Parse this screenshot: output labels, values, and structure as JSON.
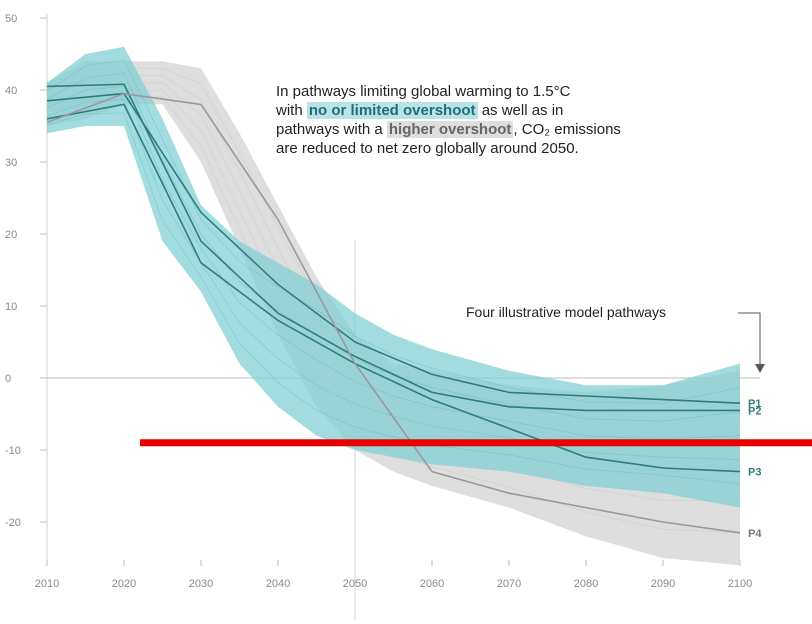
{
  "annotation": {
    "line1": "In pathways limiting global warming to 1.5°C",
    "line2_pre": "with ",
    "line2_highlight": "no or limited overshoot",
    "line2_post": " as well as in",
    "line3_pre": "pathways with a ",
    "line3_highlight": "higher overshoot",
    "line3_post": ", CO₂ emissions",
    "line4": "are reduced to net zero globally around 2050."
  },
  "pathways_note": "Four illustrative model pathways",
  "colors": {
    "teal_band": "#7fcfd3",
    "teal_line": "#2f7d7d",
    "grey_band": "#d3d3d3",
    "grey_line": "#9a9a9a",
    "red_marker": "#e60000"
  },
  "chart_data": {
    "type": "line",
    "x_ticks": [
      2010,
      2020,
      2030,
      2040,
      2050,
      2060,
      2070,
      2080,
      2090,
      2100
    ],
    "y_ticks": [
      50,
      40,
      30,
      20,
      10,
      0,
      -10,
      -20
    ],
    "xlim": [
      2010,
      2100
    ],
    "ylim": [
      -25,
      50
    ],
    "grid": false,
    "bands": [
      {
        "name": "higher overshoot range",
        "color": "#d9d9d9",
        "x": [
          2010,
          2015,
          2020,
          2025,
          2030,
          2035,
          2040,
          2045,
          2050,
          2055,
          2060,
          2070,
          2080,
          2090,
          2100
        ],
        "upper": [
          41,
          44,
          44,
          44,
          43,
          34,
          24,
          14,
          6,
          2,
          1,
          -1,
          -2,
          -1,
          1
        ],
        "lower": [
          35,
          36,
          38,
          38,
          30,
          18,
          6,
          -4,
          -10,
          -13,
          -15,
          -18,
          -22,
          -25,
          -26
        ]
      },
      {
        "name": "no or limited overshoot range",
        "color": "#7fcfd3",
        "x": [
          2010,
          2015,
          2020,
          2025,
          2030,
          2035,
          2040,
          2045,
          2050,
          2055,
          2060,
          2070,
          2080,
          2090,
          2100
        ],
        "upper": [
          41,
          45,
          46,
          36,
          24,
          19,
          16,
          13,
          9,
          6,
          4,
          1,
          -1,
          -1,
          2
        ],
        "lower": [
          34,
          35,
          35,
          19,
          12,
          2,
          -4,
          -8,
          -10,
          -11,
          -12,
          -13,
          -15,
          -16,
          -18
        ]
      }
    ],
    "series": [
      {
        "name": "P1",
        "values": [
          [
            2010,
            38.5
          ],
          [
            2020,
            39.5
          ],
          [
            2030,
            23
          ],
          [
            2040,
            13
          ],
          [
            2050,
            5
          ],
          [
            2060,
            0.5
          ],
          [
            2070,
            -2
          ],
          [
            2080,
            -2.5
          ],
          [
            2090,
            -3
          ],
          [
            2100,
            -3.5
          ]
        ]
      },
      {
        "name": "P2",
        "values": [
          [
            2010,
            40.5
          ],
          [
            2020,
            40.8
          ],
          [
            2030,
            19
          ],
          [
            2040,
            9
          ],
          [
            2050,
            3
          ],
          [
            2060,
            -2
          ],
          [
            2070,
            -4
          ],
          [
            2080,
            -4.5
          ],
          [
            2090,
            -4.5
          ],
          [
            2100,
            -4.5
          ]
        ]
      },
      {
        "name": "P3",
        "values": [
          [
            2010,
            36
          ],
          [
            2020,
            38
          ],
          [
            2030,
            16
          ],
          [
            2040,
            8
          ],
          [
            2050,
            2
          ],
          [
            2060,
            -3
          ],
          [
            2070,
            -7
          ],
          [
            2080,
            -11
          ],
          [
            2090,
            -12.5
          ],
          [
            2100,
            -13
          ]
        ]
      },
      {
        "name": "P4",
        "values": [
          [
            2010,
            35.5
          ],
          [
            2020,
            39.5
          ],
          [
            2030,
            38
          ],
          [
            2040,
            22
          ],
          [
            2050,
            2
          ],
          [
            2060,
            -13
          ],
          [
            2070,
            -16
          ],
          [
            2080,
            -18
          ],
          [
            2090,
            -20
          ],
          [
            2100,
            -21.5
          ]
        ]
      }
    ],
    "reference_lines": {
      "zero_y": 0,
      "vertical_x": 2050,
      "red_marker_y": -9
    }
  }
}
